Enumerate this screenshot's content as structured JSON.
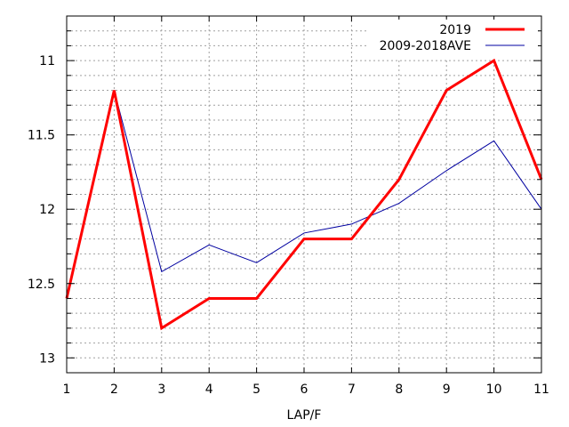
{
  "chart_data": {
    "type": "line",
    "title": "",
    "xlabel": "LAP/F",
    "ylabel": "",
    "x": [
      1,
      2,
      3,
      4,
      5,
      6,
      7,
      8,
      9,
      10,
      11
    ],
    "xlim": [
      1,
      11
    ],
    "ylim": [
      13.1,
      10.7
    ],
    "y_reversed": true,
    "y_ticks": [
      11,
      11.5,
      12,
      12.5,
      13
    ],
    "y_tick_labels": [
      "11",
      "11.5",
      "12",
      "12.5",
      "13"
    ],
    "x_tick_labels": [
      "1",
      "2",
      "3",
      "4",
      "5",
      "6",
      "7",
      "8",
      "9",
      "10",
      "11"
    ],
    "grid": true,
    "legend_position": "top-right",
    "series": [
      {
        "name": "2019",
        "color": "#ff0000",
        "values": [
          12.6,
          11.2,
          12.8,
          12.6,
          12.6,
          12.2,
          12.2,
          11.8,
          11.2,
          11.0,
          11.8
        ]
      },
      {
        "name": "2009-2018AVE",
        "color": "#0000a0",
        "values": [
          12.6,
          11.2,
          12.42,
          12.24,
          12.36,
          12.16,
          12.1,
          11.96,
          11.74,
          11.54,
          12.0
        ]
      }
    ]
  }
}
